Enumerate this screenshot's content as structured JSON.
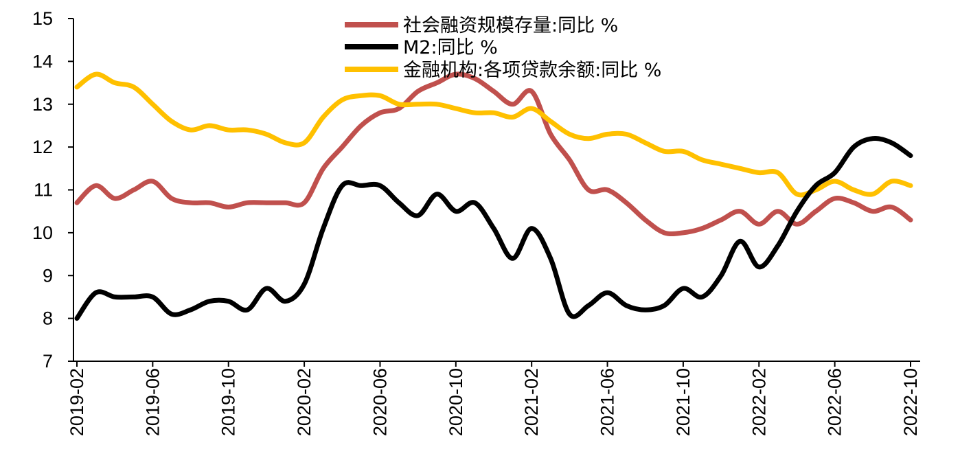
{
  "chart_data": {
    "type": "line",
    "title": "",
    "xlabel": "",
    "ylabel": "",
    "ylim": [
      7,
      15
    ],
    "yticks": [
      "7",
      "8",
      "9",
      "10",
      "11",
      "12",
      "13",
      "14",
      "15"
    ],
    "xtick_labels": [
      "2019-02",
      "2019-06",
      "2019-10",
      "2020-02",
      "2020-06",
      "2020-10",
      "2021-02",
      "2021-06",
      "2021-10",
      "2022-02",
      "2022-06",
      "2022-10"
    ],
    "x": [
      "2019-02",
      "2019-03",
      "2019-04",
      "2019-05",
      "2019-06",
      "2019-07",
      "2019-08",
      "2019-09",
      "2019-10",
      "2019-11",
      "2019-12",
      "2020-01",
      "2020-02",
      "2020-03",
      "2020-04",
      "2020-05",
      "2020-06",
      "2020-07",
      "2020-08",
      "2020-09",
      "2020-10",
      "2020-11",
      "2020-12",
      "2021-01",
      "2021-02",
      "2021-03",
      "2021-04",
      "2021-05",
      "2021-06",
      "2021-07",
      "2021-08",
      "2021-09",
      "2021-10",
      "2021-11",
      "2021-12",
      "2022-01",
      "2022-02",
      "2022-03",
      "2022-04",
      "2022-05",
      "2022-06",
      "2022-07",
      "2022-08",
      "2022-09",
      "2022-10"
    ],
    "grid": false,
    "legend_position": "top-center",
    "series": [
      {
        "name": "社会融资规模存量:同比 %",
        "color": "#C0504D",
        "values": [
          10.7,
          11.1,
          10.8,
          11.0,
          11.2,
          10.8,
          10.7,
          10.7,
          10.6,
          10.7,
          10.7,
          10.7,
          10.7,
          11.5,
          12.0,
          12.5,
          12.8,
          12.9,
          13.3,
          13.5,
          13.7,
          13.6,
          13.3,
          13.0,
          13.3,
          12.3,
          11.7,
          11.0,
          11.0,
          10.7,
          10.3,
          10.0,
          10.0,
          10.1,
          10.3,
          10.5,
          10.2,
          10.5,
          10.2,
          10.5,
          10.8,
          10.7,
          10.5,
          10.6,
          10.3
        ]
      },
      {
        "name": "M2:同比 %",
        "color": "#000000",
        "values": [
          8.0,
          8.6,
          8.5,
          8.5,
          8.5,
          8.1,
          8.2,
          8.4,
          8.4,
          8.2,
          8.7,
          8.4,
          8.8,
          10.1,
          11.1,
          11.1,
          11.1,
          10.7,
          10.4,
          10.9,
          10.5,
          10.7,
          10.1,
          9.4,
          10.1,
          9.4,
          8.1,
          8.3,
          8.6,
          8.3,
          8.2,
          8.3,
          8.7,
          8.5,
          9.0,
          9.8,
          9.2,
          9.7,
          10.5,
          11.1,
          11.4,
          12.0,
          12.2,
          12.1,
          11.8
        ]
      },
      {
        "name": "金融机构:各项贷款余额:同比 %",
        "color": "#FFC000",
        "values": [
          13.4,
          13.7,
          13.5,
          13.4,
          13.0,
          12.6,
          12.4,
          12.5,
          12.4,
          12.4,
          12.3,
          12.1,
          12.1,
          12.7,
          13.1,
          13.2,
          13.2,
          13.0,
          13.0,
          13.0,
          12.9,
          12.8,
          12.8,
          12.7,
          12.9,
          12.6,
          12.3,
          12.2,
          12.3,
          12.3,
          12.1,
          11.9,
          11.9,
          11.7,
          11.6,
          11.5,
          11.4,
          11.4,
          10.9,
          11.0,
          11.2,
          11.0,
          10.9,
          11.2,
          11.1
        ]
      }
    ]
  }
}
